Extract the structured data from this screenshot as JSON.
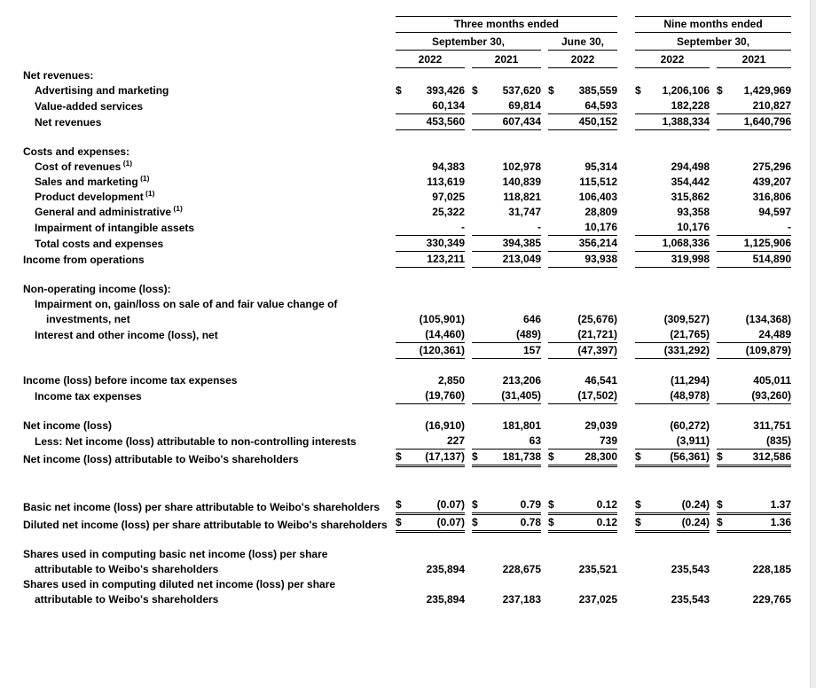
{
  "page": {
    "background": "#ffffff",
    "text_color": "#000000",
    "rule_color": "#000000"
  },
  "currency_symbol": "$",
  "header": {
    "groups": [
      {
        "label": "Three months ended",
        "span": 3
      },
      {
        "label": "Nine months ended",
        "span": 2
      }
    ],
    "periods": [
      {
        "label": "September 30,",
        "span": 2
      },
      {
        "label": "June 30,",
        "span": 1
      },
      {
        "label": "September 30,",
        "span": 2
      }
    ],
    "years": [
      "2022",
      "2021",
      "2022",
      "2022",
      "2021"
    ]
  },
  "rows": [
    {
      "type": "section",
      "label": "Net revenues:"
    },
    {
      "label": "Advertising and marketing",
      "indent": 1,
      "dollar": true,
      "values": [
        "393,426",
        "537,620",
        "385,559",
        "1,206,106",
        "1,429,969"
      ]
    },
    {
      "label": "Value-added services",
      "indent": 1,
      "underline": "single",
      "values": [
        "60,134",
        "69,814",
        "64,593",
        "182,228",
        "210,827"
      ]
    },
    {
      "label": "Net revenues",
      "indent": 1,
      "underline": "single",
      "values": [
        "453,560",
        "607,434",
        "450,152",
        "1,388,334",
        "1,640,796"
      ]
    },
    {
      "type": "spacer"
    },
    {
      "type": "section",
      "label": "Costs and expenses:"
    },
    {
      "label": "Cost of revenues",
      "sup": "(1)",
      "indent": 1,
      "values": [
        "94,383",
        "102,978",
        "95,314",
        "294,498",
        "275,296"
      ]
    },
    {
      "label": "Sales and marketing",
      "sup": "(1)",
      "indent": 1,
      "values": [
        "113,619",
        "140,839",
        "115,512",
        "354,442",
        "439,207"
      ]
    },
    {
      "label": "Product development",
      "sup": "(1)",
      "indent": 1,
      "values": [
        "97,025",
        "118,821",
        "106,403",
        "315,862",
        "316,806"
      ]
    },
    {
      "label": "General and administrative",
      "sup": "(1)",
      "indent": 1,
      "values": [
        "25,322",
        "31,747",
        "28,809",
        "93,358",
        "94,597"
      ]
    },
    {
      "label": "Impairment of intangible assets",
      "indent": 1,
      "underline": "single",
      "values": [
        "-",
        "-",
        "10,176",
        "10,176",
        "-"
      ]
    },
    {
      "label": "Total costs and expenses",
      "indent": 1,
      "underline": "single",
      "values": [
        "330,349",
        "394,385",
        "356,214",
        "1,068,336",
        "1,125,906"
      ]
    },
    {
      "label": "Income from operations",
      "indent": 0,
      "underline": "single",
      "values": [
        "123,211",
        "213,049",
        "93,938",
        "319,998",
        "514,890"
      ]
    },
    {
      "type": "spacer"
    },
    {
      "type": "section",
      "label": "Non-operating income (loss):"
    },
    {
      "label": "Impairment on, gain/loss on sale of and fair value change of investments, net",
      "indent": 1,
      "hang": "in",
      "values": [
        "(105,901)",
        "646",
        "(25,676)",
        "(309,527)",
        "(134,368)"
      ]
    },
    {
      "label": "Interest and other income (loss), net",
      "indent": 1,
      "underline": "single",
      "values": [
        "(14,460)",
        "(489)",
        "(21,721)",
        "(21,765)",
        "24,489"
      ]
    },
    {
      "label": "",
      "indent": 0,
      "underline": "single",
      "values": [
        "(120,361)",
        "157",
        "(47,397)",
        "(331,292)",
        "(109,879)"
      ]
    },
    {
      "type": "spacer"
    },
    {
      "label": "Income (loss) before income tax expenses",
      "indent": 0,
      "values": [
        "2,850",
        "213,206",
        "46,541",
        "(11,294)",
        "405,011"
      ]
    },
    {
      "label": "Income tax expenses",
      "indent": 1,
      "underline": "single",
      "values": [
        "(19,760)",
        "(31,405)",
        "(17,502)",
        "(48,978)",
        "(93,260)"
      ]
    },
    {
      "type": "spacer"
    },
    {
      "label": "Net income (loss)",
      "indent": 0,
      "values": [
        "(16,910)",
        "181,801",
        "29,039",
        "(60,272)",
        "311,751"
      ]
    },
    {
      "label": "Less: Net income (loss) attributable to non-controlling interests",
      "indent": 1,
      "hang": "out",
      "underline": "single",
      "values": [
        "227",
        "63",
        "739",
        "(3,911)",
        "(835)"
      ]
    },
    {
      "label": "Net income (loss) attributable to Weibo's shareholders",
      "indent": 0,
      "dollar": true,
      "underline": "double",
      "values": [
        "(17,137)",
        "181,738",
        "28,300",
        "(56,361)",
        "312,586"
      ]
    },
    {
      "type": "spacer",
      "h": 34
    },
    {
      "label": "Basic net income (loss) per share attributable to Weibo's shareholders",
      "indent": 0,
      "hang": "in",
      "dollar": true,
      "underline": "double",
      "values": [
        "(0.07)",
        "0.79",
        "0.12",
        "(0.24)",
        "1.37"
      ]
    },
    {
      "label": "Diluted net income (loss) per share attributable to Weibo's shareholders",
      "indent": 0,
      "hang": "in",
      "dollar": true,
      "underline": "double",
      "values": [
        "(0.07)",
        "0.78",
        "0.12",
        "(0.24)",
        "1.36"
      ]
    },
    {
      "type": "spacer"
    },
    {
      "label": "Shares used in computing basic net income (loss) per share attributable to Weibo's shareholders",
      "indent": 0,
      "hang": "in",
      "values": [
        "235,894",
        "228,675",
        "235,521",
        "235,543",
        "228,185"
      ]
    },
    {
      "label": "Shares used in computing diluted net income (loss) per share attributable to Weibo's shareholders",
      "indent": 0,
      "hang": "in",
      "values": [
        "235,894",
        "237,183",
        "237,025",
        "235,543",
        "229,765"
      ]
    }
  ]
}
